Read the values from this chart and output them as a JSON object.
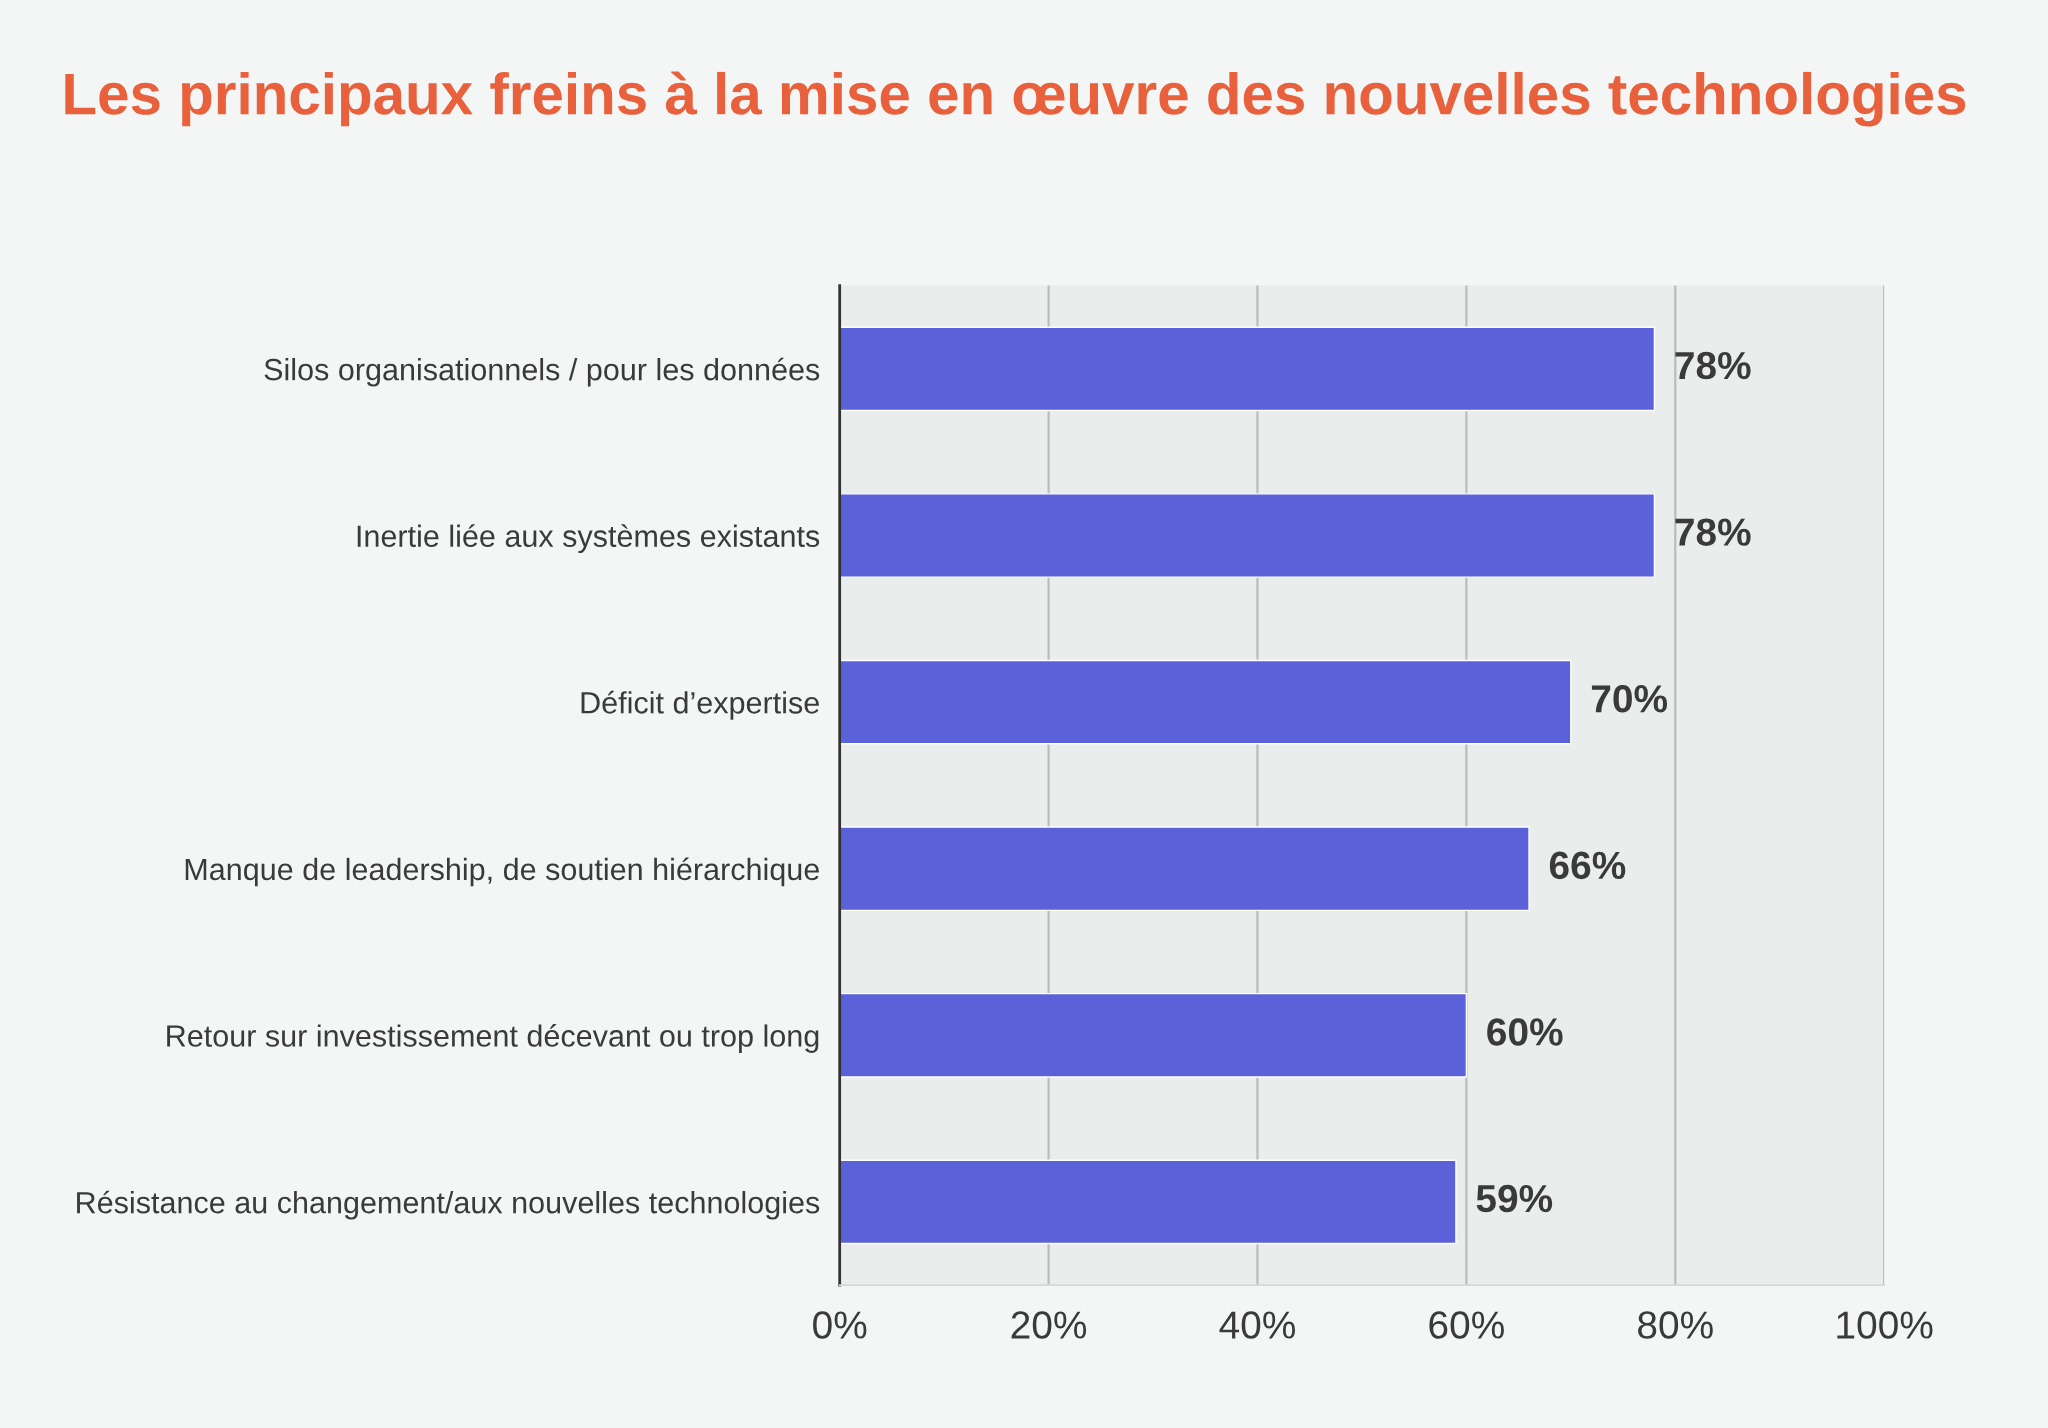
{
  "chart_data": {
    "type": "bar",
    "orientation": "horizontal",
    "title": "Les principaux freins à la mise en œuvre des nouvelles technologies",
    "categories": [
      "Silos organisationnels / pour les données",
      "Inertie liée aux systèmes existants",
      "Déficit d’expertise",
      "Manque de leadership, de soutien hiérarchique",
      "Retour sur investissement décevant ou trop long",
      "Résistance au changement/aux nouvelles technologies"
    ],
    "values": [
      78,
      78,
      70,
      66,
      60,
      59
    ],
    "color": "#5a61d9",
    "value_labels": [
      "78%",
      "78%",
      "70%",
      "66%",
      "60%",
      "59%"
    ],
    "xlim": [
      0,
      100
    ],
    "xticks": [
      {
        "value": 0,
        "label": "0%"
      },
      {
        "value": 20,
        "label": "20%"
      },
      {
        "value": 40,
        "label": "40%"
      },
      {
        "value": 60,
        "label": "60%"
      },
      {
        "value": 80,
        "label": "80%"
      },
      {
        "value": 100,
        "label": "100%"
      }
    ],
    "grid": "x"
  }
}
